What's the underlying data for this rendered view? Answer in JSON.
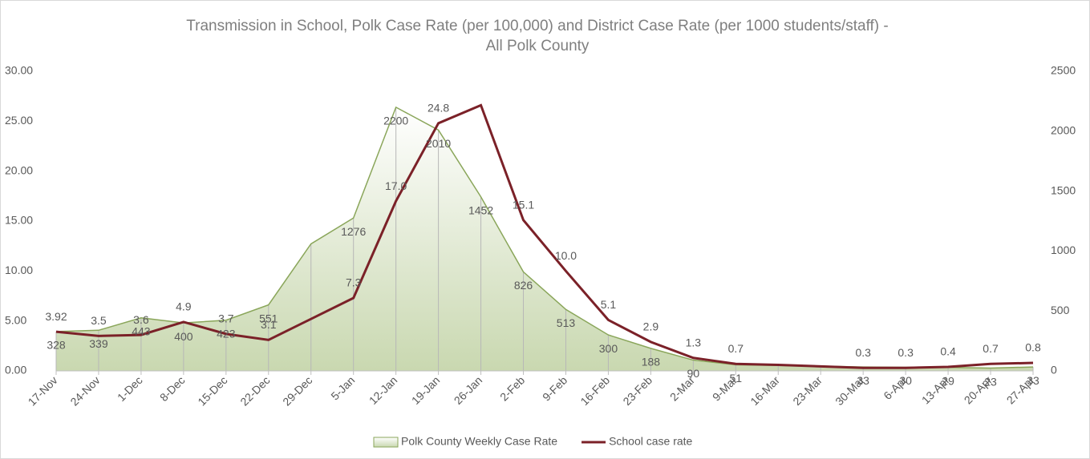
{
  "chart_data": {
    "type": "area-line",
    "title": "Transmission in School, Polk Case Rate (per 100,000) and District Case Rate (per 1000 students/staff) - All Polk County",
    "categories": [
      "17-Nov",
      "24-Nov",
      "1-Dec",
      "8-Dec",
      "15-Dec",
      "22-Dec",
      "29-Dec",
      "5-Jan",
      "12-Jan",
      "19-Jan",
      "26-Jan",
      "2-Feb",
      "9-Feb",
      "16-Feb",
      "23-Feb",
      "2-Mar",
      "9-Mar",
      "16-Mar",
      "23-Mar",
      "30-Mar",
      "6-Apr",
      "13-Apr",
      "20-Apr",
      "27-Apr"
    ],
    "series": [
      {
        "name": "Polk County Weekly Case Rate",
        "type": "area",
        "axis": "y2",
        "color": "#8aa65a",
        "values": [
          328,
          339,
          443,
          400,
          423,
          551,
          1060,
          1276,
          2200,
          2010,
          1452,
          826,
          513,
          300,
          188,
          90,
          51,
          45,
          40,
          33,
          30,
          29,
          23,
          33
        ],
        "value_labels": [
          "328",
          "339",
          "443",
          "400",
          "423",
          "551",
          null,
          "1276",
          "2200",
          "2010",
          "1452",
          "826",
          "513",
          "300",
          "188",
          "90",
          "51",
          null,
          null,
          "33",
          "30",
          "29",
          "23",
          "33"
        ]
      },
      {
        "name": "School case rate",
        "type": "line",
        "axis": "y",
        "color": "#7b2128",
        "values": [
          3.92,
          3.5,
          3.6,
          4.9,
          3.7,
          3.1,
          5.2,
          7.3,
          17.0,
          24.8,
          26.6,
          15.1,
          10.0,
          5.1,
          2.9,
          1.3,
          0.7,
          0.6,
          0.45,
          0.3,
          0.3,
          0.4,
          0.7,
          0.8
        ],
        "value_labels": [
          "3.92",
          "3.5",
          "3.6",
          "4.9",
          "3.7",
          "3.1",
          null,
          "7.3",
          "17.0",
          "24.8",
          null,
          "15.1",
          "10.0",
          "5.1",
          "2.9",
          "1.3",
          "0.7",
          null,
          null,
          "0.3",
          "0.3",
          "0.4",
          "0.7",
          "0.8"
        ]
      }
    ],
    "ylim": [
      0,
      30
    ],
    "yticks": [
      {
        "value": 0,
        "label": "0.00"
      },
      {
        "value": 5,
        "label": "5.00"
      },
      {
        "value": 10,
        "label": "10.00"
      },
      {
        "value": 15,
        "label": "15.00"
      },
      {
        "value": 20,
        "label": "20.00"
      },
      {
        "value": 25,
        "label": "25.00"
      },
      {
        "value": 30,
        "label": "30.00"
      }
    ],
    "y2lim": [
      0,
      2500
    ],
    "y2ticks": [
      0,
      500,
      1000,
      1500,
      2000,
      2500
    ],
    "legend": "bottom"
  }
}
